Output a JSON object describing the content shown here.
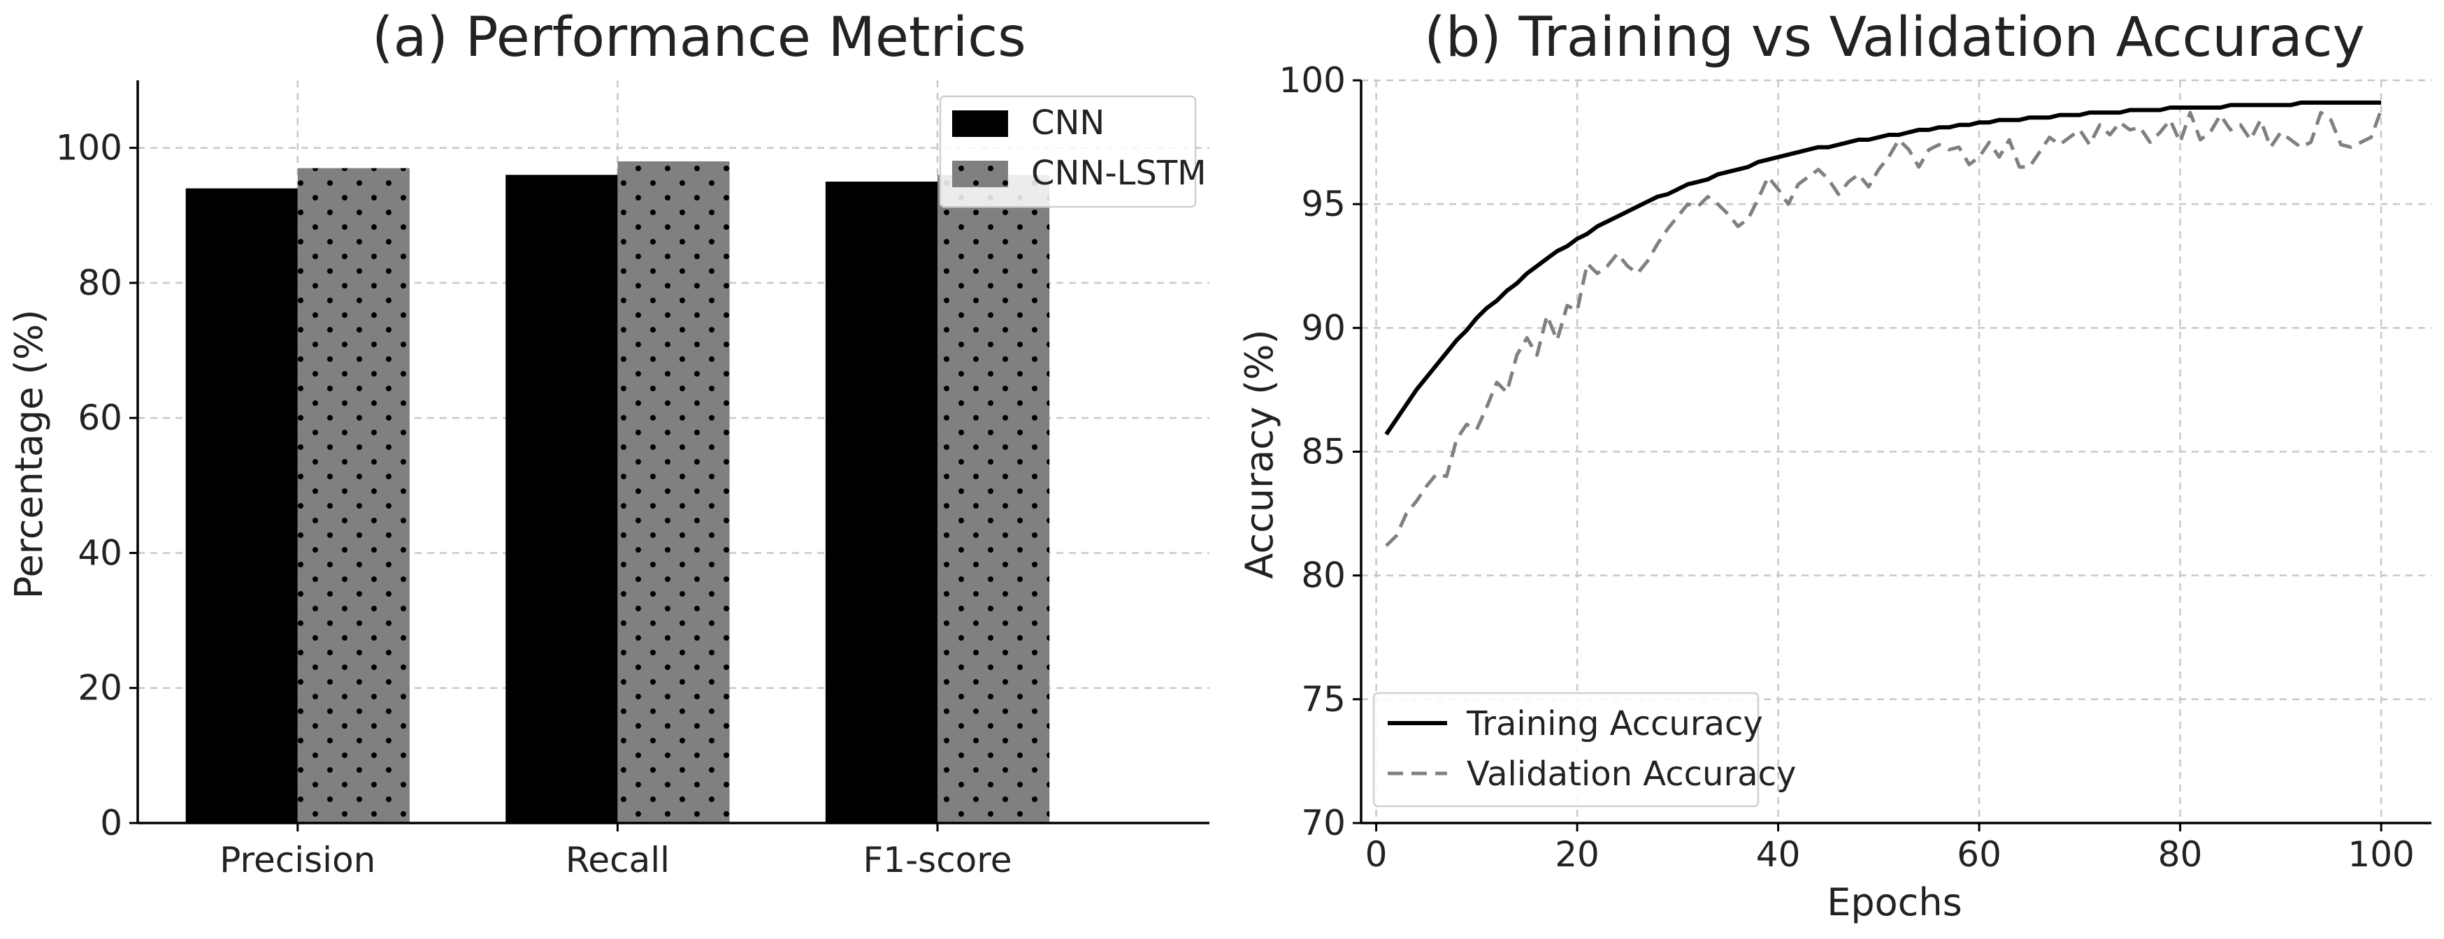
{
  "chart_data": [
    {
      "type": "bar",
      "title": "(a) Performance Metrics",
      "xlabel": "",
      "ylabel": "Percentage (%)",
      "ylim": [
        0,
        110
      ],
      "yticks": [
        0,
        20,
        40,
        60,
        80,
        100
      ],
      "grid": true,
      "legend_position": "top-right",
      "categories": [
        "Precision",
        "Recall",
        "F1-score"
      ],
      "series": [
        {
          "name": "CNN",
          "values": [
            94,
            96,
            95
          ],
          "color": "#000000",
          "pattern": "solid"
        },
        {
          "name": "CNN-LSTM",
          "values": [
            97,
            98,
            96
          ],
          "color": "#808080",
          "pattern": "dots"
        }
      ]
    },
    {
      "type": "line",
      "title": "(b) Training vs Validation Accuracy",
      "xlabel": "Epochs",
      "ylabel": "Accuracy (%)",
      "xlim": [
        -1.5,
        105
      ],
      "ylim": [
        70,
        100
      ],
      "xticks": [
        0,
        20,
        40,
        60,
        80,
        100
      ],
      "yticks": [
        70,
        75,
        80,
        85,
        90,
        95,
        100
      ],
      "grid": true,
      "legend_position": "bottom-left",
      "x": [
        1,
        2,
        3,
        4,
        5,
        6,
        7,
        8,
        9,
        10,
        11,
        12,
        13,
        14,
        15,
        16,
        17,
        18,
        19,
        20,
        21,
        22,
        23,
        24,
        25,
        26,
        27,
        28,
        29,
        30,
        31,
        32,
        33,
        34,
        35,
        36,
        37,
        38,
        39,
        40,
        41,
        42,
        43,
        44,
        45,
        46,
        47,
        48,
        49,
        50,
        51,
        52,
        53,
        54,
        55,
        56,
        57,
        58,
        59,
        60,
        61,
        62,
        63,
        64,
        65,
        66,
        67,
        68,
        69,
        70,
        71,
        72,
        73,
        74,
        75,
        76,
        77,
        78,
        79,
        80,
        81,
        82,
        83,
        84,
        85,
        86,
        87,
        88,
        89,
        90,
        91,
        92,
        93,
        94,
        95,
        96,
        97,
        98,
        99,
        100
      ],
      "series": [
        {
          "name": "Training Accuracy",
          "color": "#000000",
          "style": "solid",
          "values": [
            85.7,
            86.3,
            86.9,
            87.5,
            88.0,
            88.5,
            89.0,
            89.5,
            89.9,
            90.4,
            90.8,
            91.1,
            91.5,
            91.8,
            92.2,
            92.5,
            92.8,
            93.1,
            93.3,
            93.6,
            93.8,
            94.1,
            94.3,
            94.5,
            94.7,
            94.9,
            95.1,
            95.3,
            95.4,
            95.6,
            95.8,
            95.9,
            96.0,
            96.2,
            96.3,
            96.4,
            96.5,
            96.7,
            96.8,
            96.9,
            97.0,
            97.1,
            97.2,
            97.3,
            97.3,
            97.4,
            97.5,
            97.6,
            97.6,
            97.7,
            97.8,
            97.8,
            97.9,
            98.0,
            98.0,
            98.1,
            98.1,
            98.2,
            98.2,
            98.3,
            98.3,
            98.4,
            98.4,
            98.4,
            98.5,
            98.5,
            98.5,
            98.6,
            98.6,
            98.6,
            98.7,
            98.7,
            98.7,
            98.7,
            98.8,
            98.8,
            98.8,
            98.8,
            98.9,
            98.9,
            98.9,
            98.9,
            98.9,
            98.9,
            99.0,
            99.0,
            99.0,
            99.0,
            99.0,
            99.0,
            99.0,
            99.1,
            99.1,
            99.1,
            99.1,
            99.1,
            99.1,
            99.1,
            99.1,
            99.1
          ]
        },
        {
          "name": "Validation Accuracy",
          "color": "#808080",
          "style": "dashed",
          "values": [
            81.2,
            81.6,
            82.5,
            83.0,
            83.6,
            84.1,
            84.0,
            85.5,
            86.1,
            85.9,
            86.8,
            87.8,
            87.4,
            88.9,
            89.6,
            88.9,
            90.5,
            89.5,
            90.9,
            90.7,
            92.6,
            92.2,
            92.5,
            93.0,
            92.5,
            92.2,
            92.7,
            93.4,
            94.0,
            94.5,
            95.0,
            94.9,
            95.3,
            95.0,
            94.6,
            94.1,
            94.4,
            95.2,
            96.1,
            95.6,
            95.0,
            95.8,
            96.1,
            96.4,
            96.0,
            95.4,
            95.9,
            96.2,
            95.7,
            96.4,
            96.9,
            97.6,
            97.2,
            96.5,
            97.2,
            97.4,
            97.2,
            97.3,
            96.6,
            96.9,
            97.5,
            96.9,
            97.6,
            96.5,
            96.5,
            97.1,
            97.7,
            97.4,
            97.7,
            98.0,
            97.4,
            98.2,
            97.8,
            98.3,
            98.0,
            98.1,
            97.5,
            97.9,
            98.4,
            97.5,
            98.7,
            97.6,
            97.9,
            98.6,
            98.0,
            98.2,
            97.6,
            98.4,
            97.3,
            97.9,
            97.6,
            97.3,
            97.5,
            98.7,
            98.4,
            97.4,
            97.3,
            97.5,
            97.7,
            98.8
          ]
        }
      ]
    }
  ]
}
